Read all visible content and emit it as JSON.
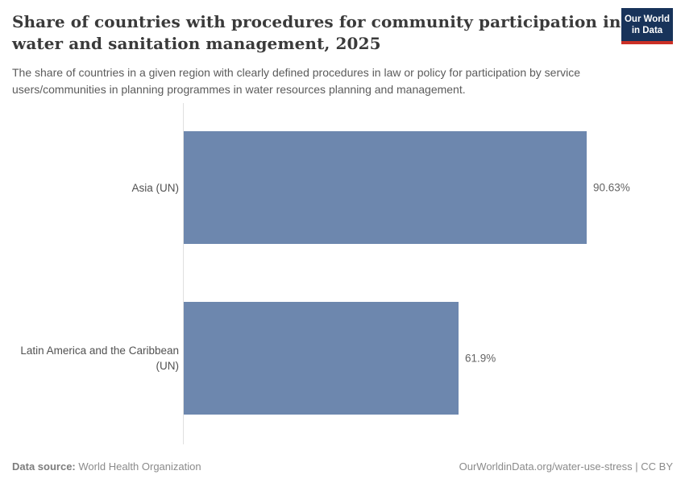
{
  "logo": {
    "line1": "Our World",
    "line2": "in Data",
    "bg_color": "#18335a",
    "stripe_color": "#cb3026"
  },
  "header": {
    "title_lines": [
      "Share of countries with procedures for community participation in",
      "water and sanitation management, 2025"
    ],
    "subtitle_lines": [
      "The share of countries in a given region with clearly defined procedures in law or policy for participation by service",
      "users/communities in planning programmes in water resources planning and management."
    ]
  },
  "chart_data": {
    "type": "bar",
    "orientation": "horizontal",
    "title": "Share of countries with procedures for community participation in water and sanitation management, 2025",
    "subtitle": "The share of countries in a given region with clearly defined procedures in law or policy for participation by service users/communities in planning programmes in water resources planning and management.",
    "categories": [
      "Asia (UN)",
      "Latin America and the Caribbean (UN)"
    ],
    "values": [
      90.63,
      61.9
    ],
    "value_labels": [
      "90.63%",
      "61.9%"
    ],
    "unit": "%",
    "xlim": [
      0,
      90.63
    ],
    "bar_color": "#6d87ae",
    "grid": false,
    "legend": false
  },
  "footer": {
    "source_label": "Data source:",
    "source_value": "World Health Organization",
    "right_text": "OurWorldinData.org/water-use-stress | CC BY"
  }
}
